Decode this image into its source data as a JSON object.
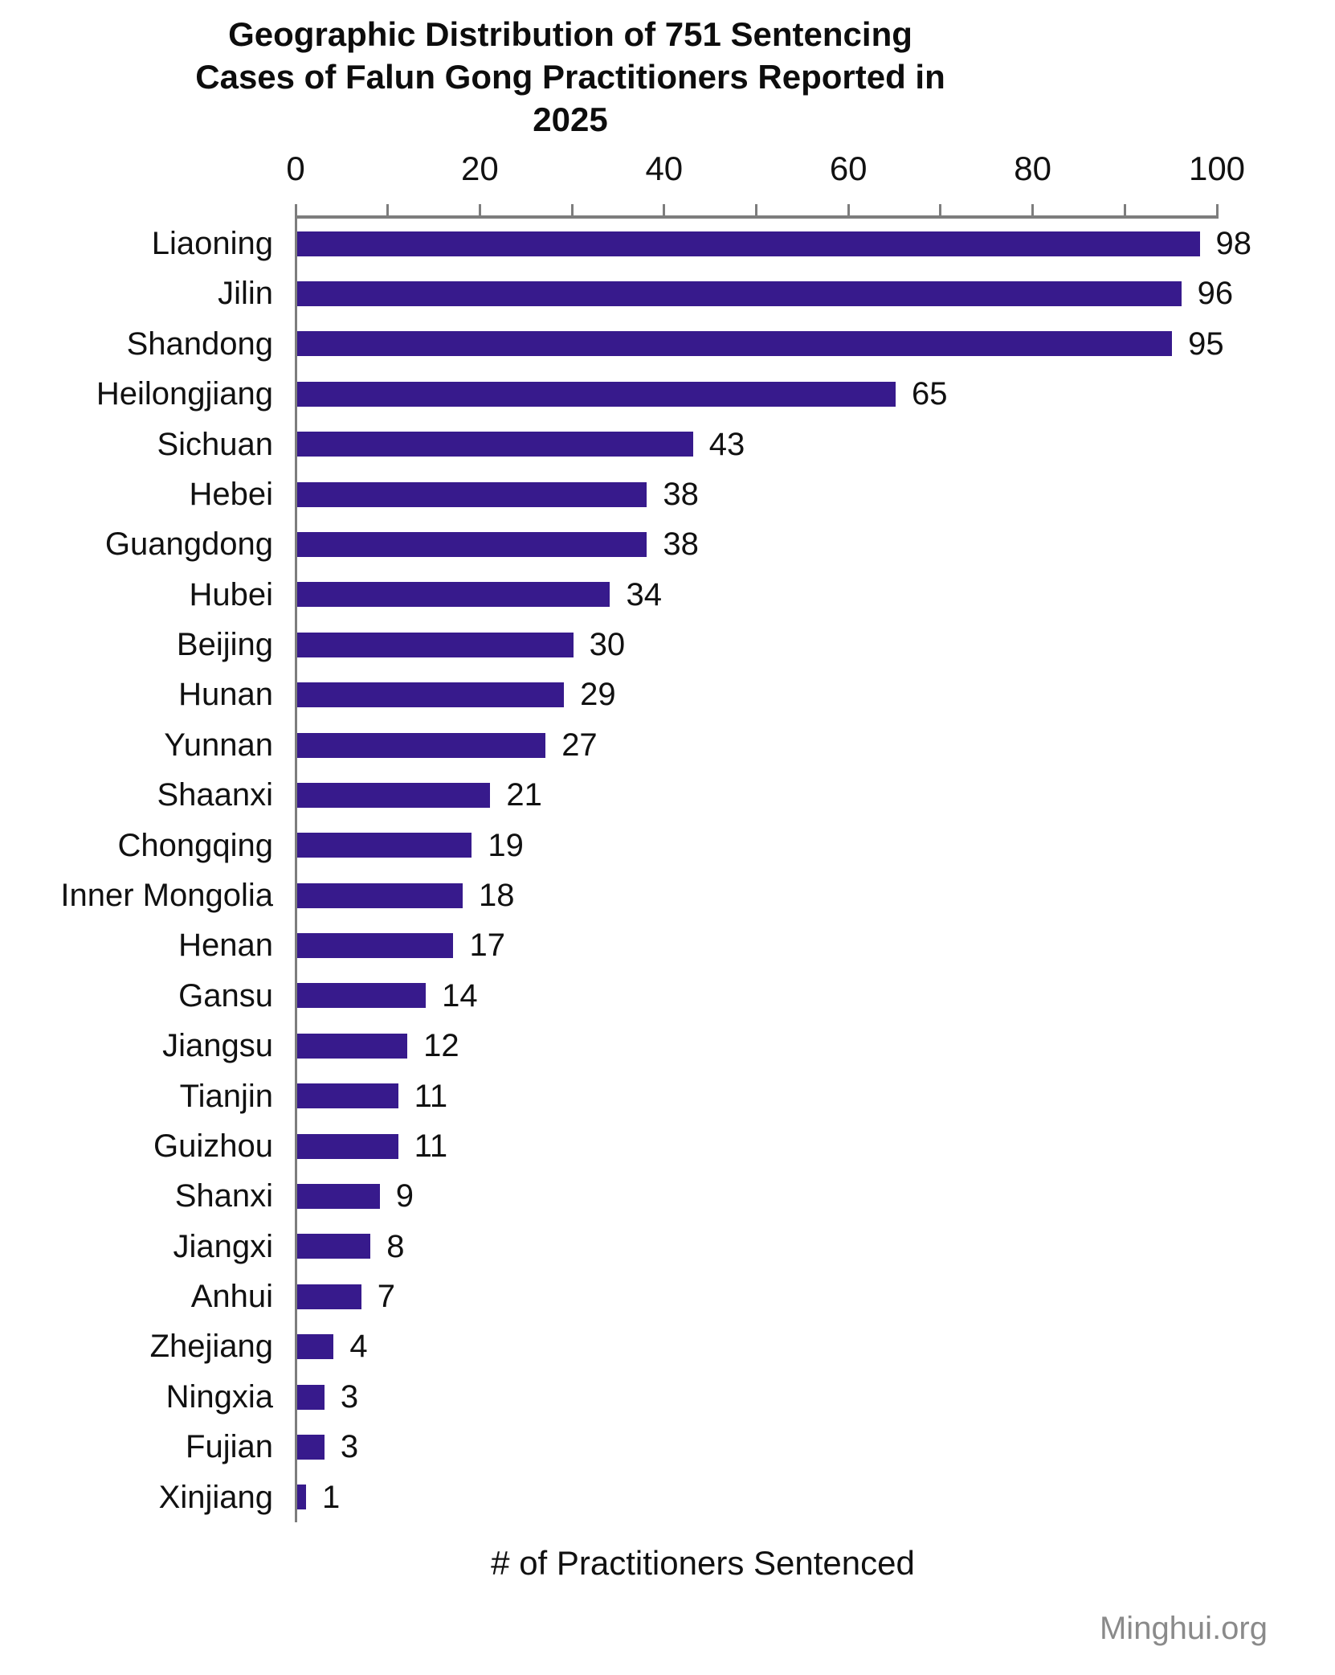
{
  "title": "Geographic Distribution of 751 Sentencing Cases of Falun Gong Practitioners Reported in 2025",
  "watermark": "Minghui.org",
  "chart_data": {
    "type": "bar",
    "orientation": "horizontal",
    "title": "Geographic Distribution of 751 Sentencing Cases of Falun Gong Practitioners Reported in 2025",
    "xlabel": "# of Practitioners Sentenced",
    "ylabel": "",
    "categories": [
      "Liaoning",
      "Jilin",
      "Shandong",
      "Heilongjiang",
      "Sichuan",
      "Hebei",
      "Guangdong",
      "Hubei",
      "Beijing",
      "Hunan",
      "Yunnan",
      "Shaanxi",
      "Chongqing",
      "Inner Mongolia",
      "Henan",
      "Gansu",
      "Jiangsu",
      "Tianjin",
      "Guizhou",
      "Shanxi",
      "Jiangxi",
      "Anhui",
      "Zhejiang",
      "Ningxia",
      "Fujian",
      "Xinjiang"
    ],
    "values": [
      98,
      96,
      95,
      65,
      43,
      38,
      38,
      34,
      30,
      29,
      27,
      21,
      19,
      18,
      17,
      14,
      12,
      11,
      11,
      9,
      8,
      7,
      4,
      3,
      3,
      1
    ],
    "total_cases": 751,
    "xlim": [
      0,
      100
    ],
    "xticks": [
      0,
      20,
      40,
      60,
      80,
      100
    ],
    "minor_tick_step": 10,
    "axis_position": "top",
    "grid": false,
    "value_labels": true,
    "legend": "none",
    "bar_color": "#371A8C",
    "axis_color": "#7D7D7D",
    "text_color": "#111111",
    "watermark_color": "#8A8A8A"
  }
}
